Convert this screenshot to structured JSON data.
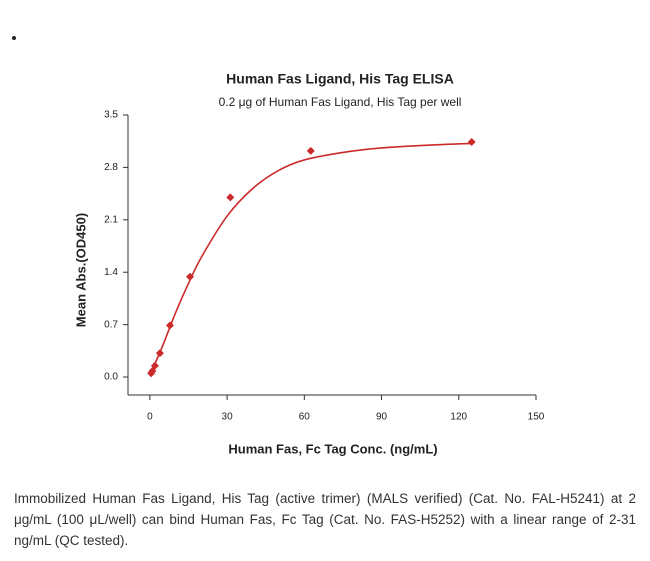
{
  "chart_data": {
    "type": "scatter",
    "title": "Human Fas Ligand, His Tag ELISA",
    "subtitle": "0.2 μg of Human Fas Ligand, His Tag per well",
    "x_label": "Human Fas, Fc Tag Conc. (ng/mL)",
    "y_label": "Mean Abs.(OD450)",
    "xlim": [
      -8.5,
      150
    ],
    "ylim": [
      -0.24,
      3.5
    ],
    "xticks": [
      0,
      30,
      60,
      90,
      120,
      150
    ],
    "yticks": [
      {
        "value": 0,
        "label": "0.0"
      },
      0.7,
      1.4,
      2.1,
      2.8,
      3.5
    ],
    "series": [
      {
        "color": "#cc2a2a",
        "mode": "markers",
        "x": [
          0.49,
          0.98,
          1.95,
          3.9,
          7.8,
          15.6,
          31.25,
          62.5,
          125
        ],
        "values": [
          0.05,
          0.08,
          0.15,
          0.32,
          0.69,
          1.34,
          2.4,
          3.02,
          3.14
        ]
      },
      {
        "color": "#cc2a2a",
        "mode": "line",
        "x": [
          0,
          2,
          5,
          10,
          15,
          20,
          30,
          40,
          50,
          60,
          75,
          90,
          110,
          125
        ],
        "values": [
          0.02,
          0.18,
          0.42,
          0.86,
          1.25,
          1.6,
          2.15,
          2.52,
          2.76,
          2.9,
          3.0,
          3.06,
          3.1,
          3.12
        ]
      }
    ]
  },
  "caption": "Immobilized Human Fas Ligand, His Tag (active trimer) (MALS verified) (Cat. No. FAL-H5241) at 2 μg/mL (100 μL/well) can bind Human Fas, Fc Tag (Cat. No. FAS-H5252) with a linear range of 2-31 ng/mL (QC tested)."
}
